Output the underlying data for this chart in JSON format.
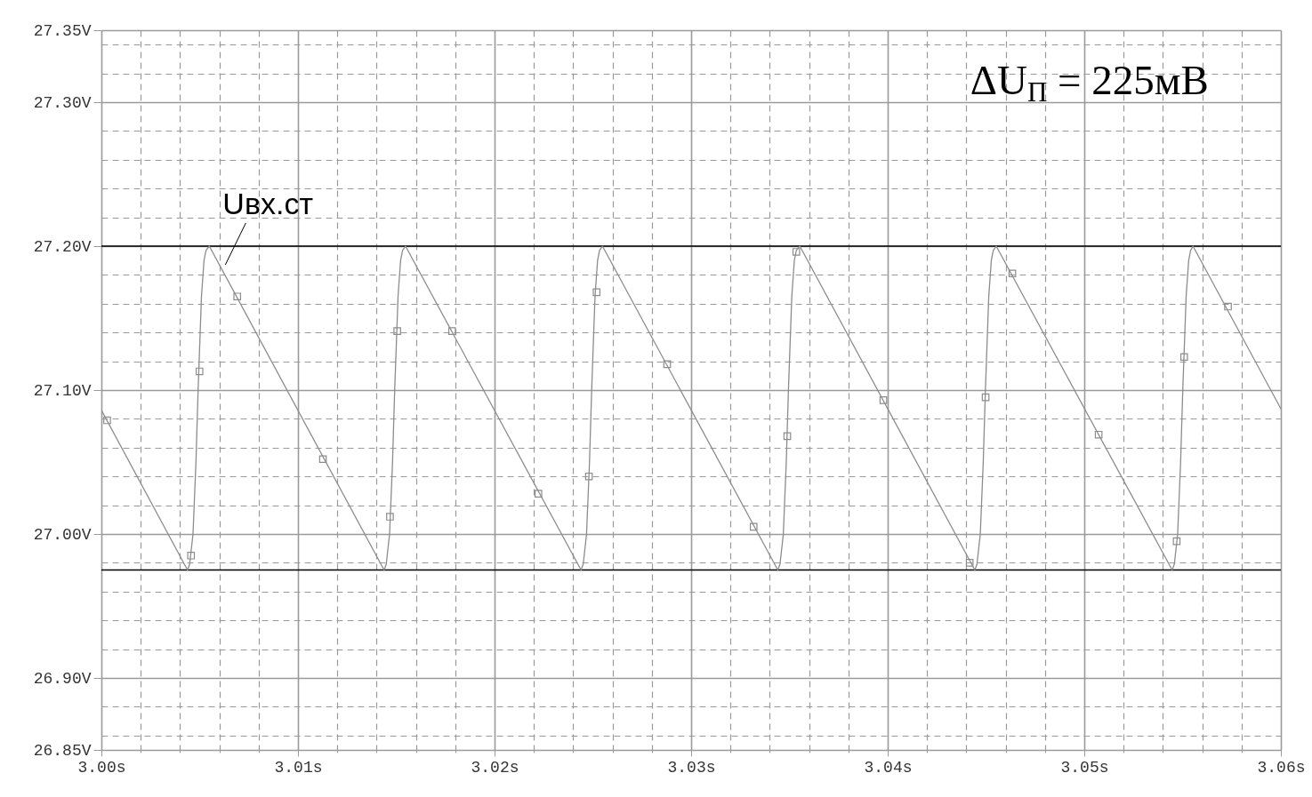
{
  "chart_data": {
    "type": "line",
    "series": [
      {
        "name": "Uвх.ст",
        "color": "#8c8c8c",
        "x": [
          3.0,
          3.00438,
          3.00449,
          3.00466,
          3.00481,
          3.00492,
          3.00509,
          3.00522,
          3.00532,
          3.00549,
          3.01438,
          3.01449,
          3.01466,
          3.01481,
          3.01492,
          3.01509,
          3.01522,
          3.01532,
          3.01547,
          3.0244,
          3.02451,
          3.02468,
          3.02483,
          3.02494,
          3.02511,
          3.02524,
          3.02534,
          3.02549,
          3.03441,
          3.03452,
          3.03469,
          3.03484,
          3.03495,
          3.03512,
          3.03525,
          3.03535,
          3.03553,
          3.04443,
          3.04454,
          3.04471,
          3.04486,
          3.04497,
          3.04514,
          3.04527,
          3.04537,
          3.04552,
          3.05447,
          3.05458,
          3.05475,
          3.0549,
          3.05501,
          3.05518,
          3.05531,
          3.05541,
          3.05553,
          3.06
        ],
        "values": [
          27.086,
          26.975,
          26.979,
          27.0,
          27.05,
          27.1,
          27.165,
          27.19,
          27.197,
          27.2,
          26.975,
          26.979,
          27.0,
          27.05,
          27.1,
          27.165,
          27.19,
          27.197,
          27.2,
          26.975,
          26.979,
          27.0,
          27.05,
          27.1,
          27.165,
          27.19,
          27.197,
          27.2,
          26.975,
          26.979,
          27.0,
          27.05,
          27.1,
          27.165,
          27.19,
          27.197,
          27.2,
          26.975,
          26.979,
          27.0,
          27.05,
          27.1,
          27.165,
          27.19,
          27.197,
          27.2,
          26.975,
          26.979,
          27.0,
          27.05,
          27.1,
          27.165,
          27.19,
          27.197,
          27.2,
          27.087
        ]
      },
      {
        "type": "scatter",
        "color": "#8c8c8c",
        "marker": "square",
        "x": [
          3.00029,
          3.00456,
          3.00499,
          3.00691,
          3.01127,
          3.01468,
          3.01505,
          3.01784,
          3.02223,
          3.0248,
          3.02519,
          3.02878,
          3.03318,
          3.03489,
          3.03535,
          3.03978,
          3.04417,
          3.04498,
          3.04634,
          3.05073,
          3.0547,
          3.05508,
          3.05731
        ],
        "values": [
          27.079,
          26.985,
          27.113,
          27.165,
          27.052,
          27.012,
          27.141,
          27.141,
          27.028,
          27.04,
          27.168,
          27.118,
          27.005,
          27.068,
          27.196,
          27.093,
          26.98,
          27.095,
          27.181,
          27.069,
          26.995,
          27.123,
          27.158
        ]
      }
    ],
    "xlim": [
      3.0,
      3.06
    ],
    "xticks": [
      {
        "value": 3.0,
        "label": "3.00s"
      },
      {
        "value": 3.002,
        "label": null
      },
      {
        "value": 3.004,
        "label": null
      },
      {
        "value": 3.006,
        "label": null
      },
      {
        "value": 3.008,
        "label": null
      },
      {
        "value": 3.01,
        "label": "3.01s"
      },
      {
        "value": 3.012,
        "label": null
      },
      {
        "value": 3.014,
        "label": null
      },
      {
        "value": 3.016,
        "label": null
      },
      {
        "value": 3.018,
        "label": null
      },
      {
        "value": 3.02,
        "label": "3.02s"
      },
      {
        "value": 3.022,
        "label": null
      },
      {
        "value": 3.024,
        "label": null
      },
      {
        "value": 3.026,
        "label": null
      },
      {
        "value": 3.028,
        "label": null
      },
      {
        "value": 3.03,
        "label": "3.03s"
      },
      {
        "value": 3.032,
        "label": null
      },
      {
        "value": 3.034,
        "label": null
      },
      {
        "value": 3.036,
        "label": null
      },
      {
        "value": 3.038,
        "label": null
      },
      {
        "value": 3.04,
        "label": "3.04s"
      },
      {
        "value": 3.042,
        "label": null
      },
      {
        "value": 3.044,
        "label": null
      },
      {
        "value": 3.046,
        "label": null
      },
      {
        "value": 3.048,
        "label": null
      },
      {
        "value": 3.05,
        "label": "3.05s"
      },
      {
        "value": 3.052,
        "label": null
      },
      {
        "value": 3.054,
        "label": null
      },
      {
        "value": 3.056,
        "label": null
      },
      {
        "value": 3.058,
        "label": null
      },
      {
        "value": 3.06,
        "label": "3.06s"
      }
    ],
    "ylim": [
      26.85,
      27.35
    ],
    "yticks": [
      {
        "value": 26.85,
        "label": "26.85V"
      },
      {
        "value": 26.86,
        "label": null
      },
      {
        "value": 26.88,
        "label": null
      },
      {
        "value": 26.9,
        "label": "26.90V"
      },
      {
        "value": 26.92,
        "label": null
      },
      {
        "value": 26.94,
        "label": null
      },
      {
        "value": 26.96,
        "label": null
      },
      {
        "value": 26.98,
        "label": null
      },
      {
        "value": 27.0,
        "label": "27.00V"
      },
      {
        "value": 27.02,
        "label": null
      },
      {
        "value": 27.04,
        "label": null
      },
      {
        "value": 27.06,
        "label": null
      },
      {
        "value": 27.08,
        "label": null
      },
      {
        "value": 27.1,
        "label": "27.10V"
      },
      {
        "value": 27.12,
        "label": null
      },
      {
        "value": 27.14,
        "label": null
      },
      {
        "value": 27.16,
        "label": null
      },
      {
        "value": 27.18,
        "label": null
      },
      {
        "value": 27.2,
        "label": "27.20V"
      },
      {
        "value": 27.22,
        "label": null
      },
      {
        "value": 27.24,
        "label": null
      },
      {
        "value": 27.26,
        "label": null
      },
      {
        "value": 27.28,
        "label": null
      },
      {
        "value": 27.3,
        "label": "27.30V"
      },
      {
        "value": 27.32,
        "label": null
      },
      {
        "value": 27.34,
        "label": null
      },
      {
        "value": 27.35,
        "label": "27.35V"
      }
    ],
    "grid": true,
    "ref_lines": [
      {
        "axis": "y",
        "value": 27.2,
        "color": "#000000"
      },
      {
        "axis": "y",
        "value": 26.975,
        "color": "#000000"
      }
    ],
    "annotations": [
      "ΔU$_{П}$ = 225мВ"
    ]
  }
}
